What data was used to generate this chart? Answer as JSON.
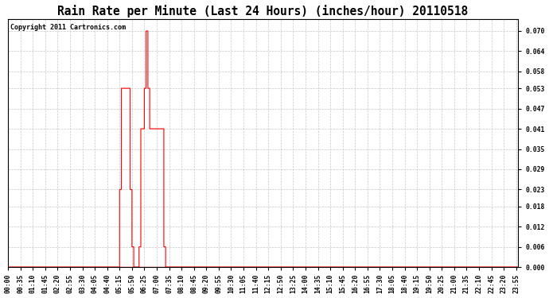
{
  "title": "Rain Rate per Minute (Last 24 Hours) (inches/hour) 20110518",
  "copyright": "Copyright 2011 Cartronics.com",
  "line_color": "#ff0000",
  "bg_color": "#ffffff",
  "plot_bg_color": "#ffffff",
  "grid_color": "#c8c8c8",
  "ylim": [
    0.0,
    0.0735
  ],
  "yticks": [
    0.0,
    0.006,
    0.012,
    0.018,
    0.023,
    0.029,
    0.035,
    0.041,
    0.047,
    0.053,
    0.058,
    0.064,
    0.07
  ],
  "title_fontsize": 10.5,
  "copyright_fontsize": 6.0,
  "tick_fontsize": 5.8,
  "x_tick_step_min": 35
}
